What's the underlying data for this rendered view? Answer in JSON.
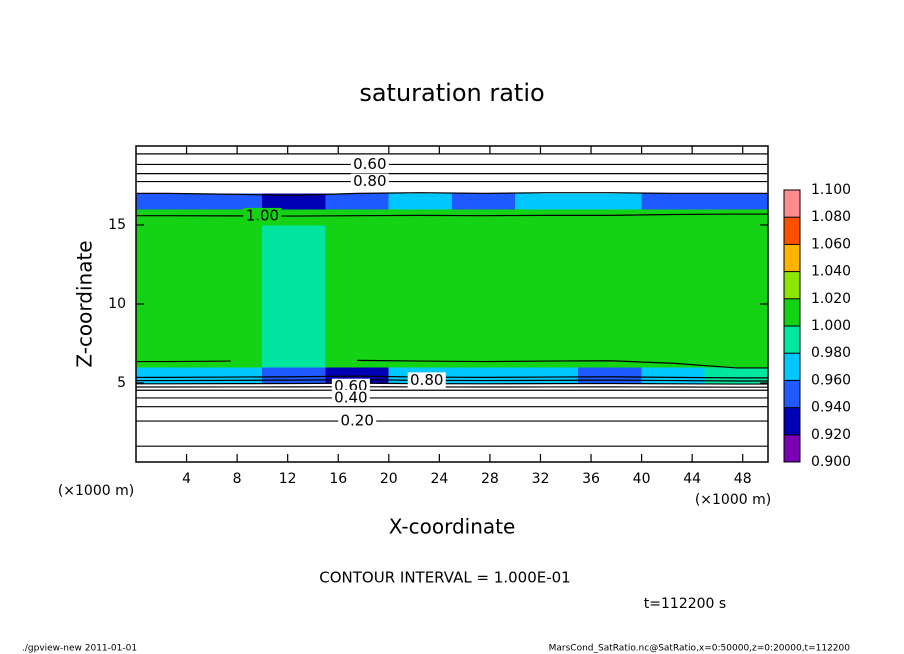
{
  "chart_data": {
    "type": "contour",
    "title": "saturation ratio",
    "xlabel": "X-coordinate",
    "ylabel": "Z-coordinate",
    "xunit": "(×1000 m)",
    "yunit": "(×1000 m)",
    "xlim": [
      0,
      50
    ],
    "ylim": [
      0,
      20
    ],
    "xticks": [
      4,
      8,
      12,
      16,
      20,
      24,
      28,
      32,
      36,
      40,
      44,
      48
    ],
    "yticks": [
      5,
      10,
      15
    ],
    "x_edges": [
      0,
      5,
      10,
      15,
      20,
      25,
      30,
      35,
      40,
      45,
      50
    ],
    "y_edges": [
      0,
      1,
      2,
      3,
      4,
      5,
      6,
      7,
      8,
      9,
      10,
      11,
      12,
      13,
      14,
      15,
      16,
      17,
      18,
      19,
      20
    ],
    "values": [
      [
        0.08,
        0.08,
        0.08,
        0.08,
        0.08,
        0.08,
        0.08,
        0.08,
        0.08,
        0.08
      ],
      [
        0.12,
        0.12,
        0.12,
        0.12,
        0.12,
        0.12,
        0.12,
        0.12,
        0.12,
        0.12
      ],
      [
        0.19,
        0.19,
        0.19,
        0.19,
        0.19,
        0.19,
        0.19,
        0.19,
        0.19,
        0.19
      ],
      [
        0.3,
        0.3,
        0.3,
        0.3,
        0.3,
        0.3,
        0.3,
        0.3,
        0.3,
        0.3
      ],
      [
        0.48,
        0.48,
        0.48,
        0.48,
        0.48,
        0.48,
        0.48,
        0.48,
        0.48,
        0.48
      ],
      [
        0.97,
        0.96,
        0.95,
        0.93,
        0.96,
        0.97,
        0.96,
        0.95,
        0.97,
        0.99
      ],
      [
        1.005,
        1.005,
        0.995,
        1.005,
        1.005,
        1.005,
        1.005,
        1.005,
        1.01,
        1.012
      ],
      [
        1.005,
        1.005,
        0.995,
        1.005,
        1.005,
        1.005,
        1.005,
        1.005,
        1.01,
        1.012
      ],
      [
        1.005,
        1.005,
        0.995,
        1.005,
        1.005,
        1.005,
        1.005,
        1.005,
        1.01,
        1.012
      ],
      [
        1.005,
        1.005,
        0.995,
        1.005,
        1.005,
        1.005,
        1.005,
        1.005,
        1.01,
        1.012
      ],
      [
        1.005,
        1.005,
        0.995,
        1.005,
        1.005,
        1.005,
        1.005,
        1.005,
        1.01,
        1.012
      ],
      [
        1.005,
        1.005,
        0.995,
        1.005,
        1.005,
        1.005,
        1.005,
        1.005,
        1.01,
        1.012
      ],
      [
        1.005,
        1.005,
        0.995,
        1.005,
        1.005,
        1.005,
        1.005,
        1.005,
        1.01,
        1.012
      ],
      [
        1.005,
        1.005,
        0.995,
        1.005,
        1.005,
        1.005,
        1.005,
        1.005,
        1.01,
        1.012
      ],
      [
        1.005,
        1.005,
        0.995,
        1.005,
        1.005,
        1.005,
        1.005,
        1.005,
        1.01,
        1.012
      ],
      [
        1.005,
        1.005,
        1.005,
        1.005,
        1.005,
        1.005,
        1.005,
        1.005,
        1.01,
        1.012
      ],
      [
        0.95,
        0.94,
        0.93,
        0.95,
        0.96,
        0.95,
        0.96,
        0.96,
        0.95,
        0.95
      ],
      [
        0.85,
        0.85,
        0.85,
        0.85,
        0.85,
        0.85,
        0.85,
        0.85,
        0.85,
        0.85
      ],
      [
        0.65,
        0.65,
        0.65,
        0.65,
        0.65,
        0.65,
        0.65,
        0.65,
        0.65,
        0.65
      ],
      [
        0.5,
        0.5,
        0.5,
        0.5,
        0.5,
        0.5,
        0.5,
        0.5,
        0.5,
        0.5
      ]
    ],
    "contour_levels": [
      0.1,
      0.2,
      0.3,
      0.4,
      0.5,
      0.6,
      0.7,
      0.8,
      0.9,
      1.0
    ],
    "contour_color": "#000000",
    "contour_labels": [
      {
        "value": 0.6,
        "label": "0.60"
      },
      {
        "value": 0.8,
        "label": "0.80"
      },
      {
        "value": 1.0,
        "label": "1.00"
      },
      {
        "value": 0.6,
        "label": "0.60"
      },
      {
        "value": 0.4,
        "label": "0.40"
      },
      {
        "value": 0.2,
        "label": "0.20"
      },
      {
        "value": 0.8,
        "label": "0.80"
      }
    ],
    "colorbar": {
      "levels": [
        {
          "value": 0.9,
          "label": "0.900"
        },
        {
          "value": 0.92,
          "label": "0.920"
        },
        {
          "value": 0.94,
          "label": "0.940"
        },
        {
          "value": 0.96,
          "label": "0.960"
        },
        {
          "value": 0.98,
          "label": "0.980"
        },
        {
          "value": 1.0,
          "label": "1.000"
        },
        {
          "value": 1.02,
          "label": "1.020"
        },
        {
          "value": 1.04,
          "label": "1.040"
        },
        {
          "value": 1.06,
          "label": "1.060"
        },
        {
          "value": 1.08,
          "label": "1.080"
        },
        {
          "value": 1.1,
          "label": "1.100"
        }
      ],
      "colors": [
        "#7a00b4",
        "#0000b4",
        "#1e5aff",
        "#00c8ff",
        "#00e6a0",
        "#14d214",
        "#8ce600",
        "#ffb400",
        "#ff5000",
        "#ff8c8c"
      ]
    },
    "contour_interval_text": "CONTOUR INTERVAL = 1.000E-01",
    "time_text": "t=112200 s",
    "footer_left": "./gpview-new  2011-01-01",
    "footer_right": "MarsCond_SatRatio.nc@SatRatio,x=0:50000,z=0:20000,t=112200"
  }
}
